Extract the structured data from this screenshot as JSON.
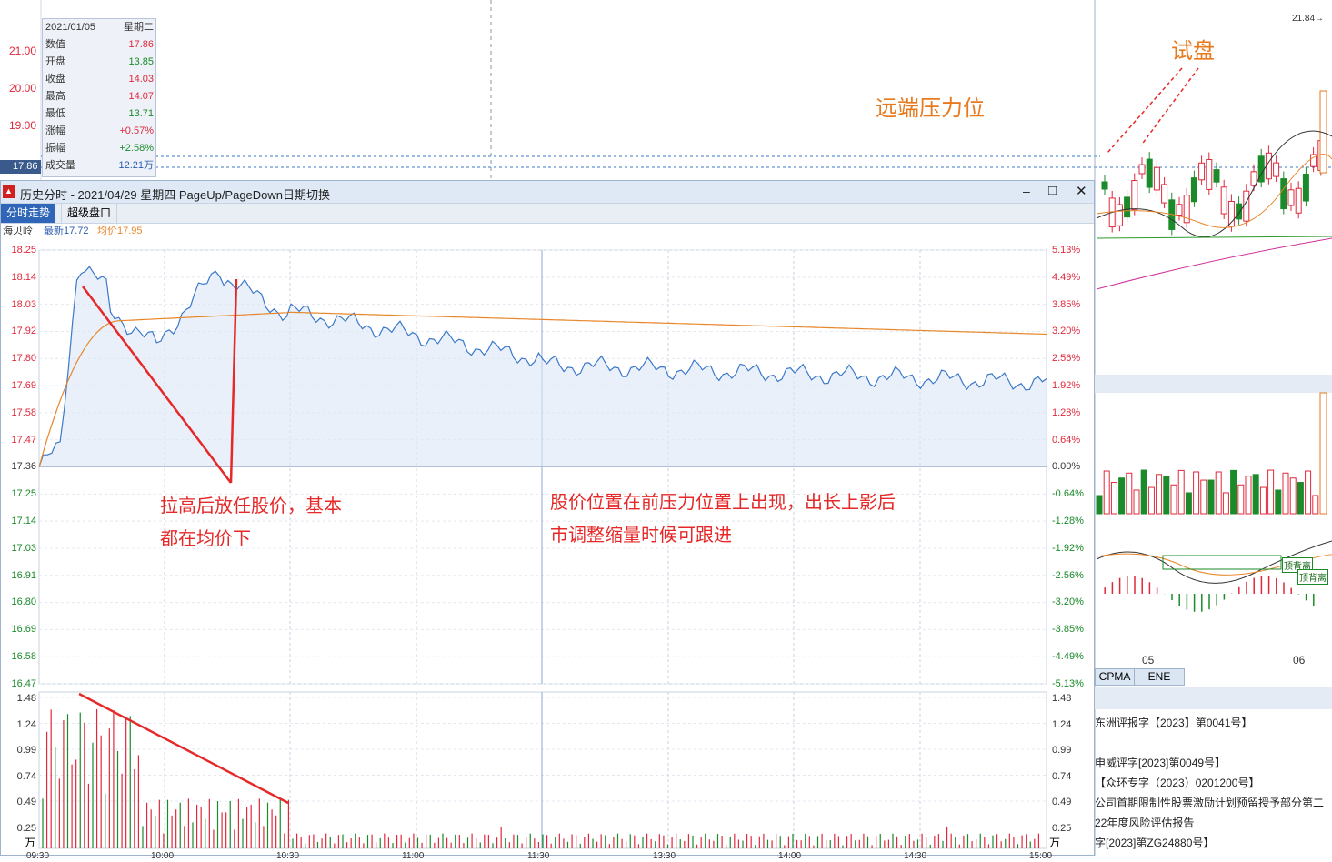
{
  "top_chart": {
    "price_labels": [
      "21.00",
      "20.00",
      "19.00"
    ],
    "current_price_tag": "17.86",
    "annotation_far_resistance": "远端压力位",
    "annotation_test": "试盘",
    "top_right_value": "21.84",
    "top_right_arrow": "→"
  },
  "infobox": {
    "date": "2021/01/05",
    "weekday": "星期二",
    "rows": [
      {
        "label": "数值",
        "value": "17.86",
        "color": "up"
      },
      {
        "label": "开盘",
        "value": "13.85",
        "color": "dn"
      },
      {
        "label": "收盘",
        "value": "14.03",
        "color": "up"
      },
      {
        "label": "最高",
        "value": "14.07",
        "color": "up"
      },
      {
        "label": "最低",
        "value": "13.71",
        "color": "dn"
      },
      {
        "label": "涨幅",
        "value": "+0.57%",
        "color": "up"
      },
      {
        "label": "振幅",
        "value": "+2.58%",
        "color": "dn"
      },
      {
        "label": "成交量",
        "value": "12.21万",
        "color": "blue"
      }
    ]
  },
  "popup": {
    "title": "历史分时 - 2021/04/29 星期四 PageUp/PageDown日期切换",
    "minimize": "–",
    "maximize": "□",
    "close": "✕",
    "tabs": [
      "分时走势",
      "超级盘口"
    ],
    "stock_name": "海贝岭",
    "latest": "最新17.72",
    "avg": "均价17.95",
    "price_axis": [
      "18.25",
      "18.14",
      "18.03",
      "17.92",
      "17.80",
      "17.69",
      "17.58",
      "17.47",
      "17.36",
      "17.25",
      "17.14",
      "17.03",
      "16.91",
      "16.80",
      "16.69",
      "16.58",
      "16.47"
    ],
    "pct_axis": [
      "5.13%",
      "4.49%",
      "3.85%",
      "3.20%",
      "2.56%",
      "1.92%",
      "1.28%",
      "0.64%",
      "0.00%",
      "-0.64%",
      "-1.28%",
      "-1.92%",
      "-2.56%",
      "-3.20%",
      "-3.85%",
      "-4.49%",
      "-5.13%"
    ],
    "vol_axis": [
      "1.48",
      "1.24",
      "0.99",
      "0.74",
      "0.49",
      "0.25"
    ],
    "vol_unit": "万",
    "time_axis": [
      "09:30",
      "10:00",
      "10:30",
      "11:00",
      "11:30",
      "13:30",
      "14:00",
      "14:30",
      "15:00"
    ],
    "annotation_left": "拉高后放任股价，基本\n都在均价下",
    "annotation_mid": "股价位置在前压力位置上出现，出长上影后\n市调整缩量时候可跟进"
  },
  "right_panel": {
    "date_labels": [
      "05",
      "06"
    ],
    "indicator_tabs": [
      "CPMA",
      "ENE"
    ],
    "tag_top": "顶背离",
    "tag_bottom": "顶背离",
    "notices": [
      "东洲评报字【2023】第0041号】",
      "申威评字[2023]第0049号】",
      "【众环专字（2023）0201200号】",
      "公司首期限制性股票激励计划预留授予部分第二",
      "22年度风险评估报告",
      "字[2023]第ZG24880号】"
    ]
  },
  "colors": {
    "up": "#e0283c",
    "down": "#1a8a2a",
    "price_line": "#3b78c9",
    "avg_line": "#e8862a",
    "annotation": "#e62828",
    "orange_text": "#e87a1e"
  }
}
